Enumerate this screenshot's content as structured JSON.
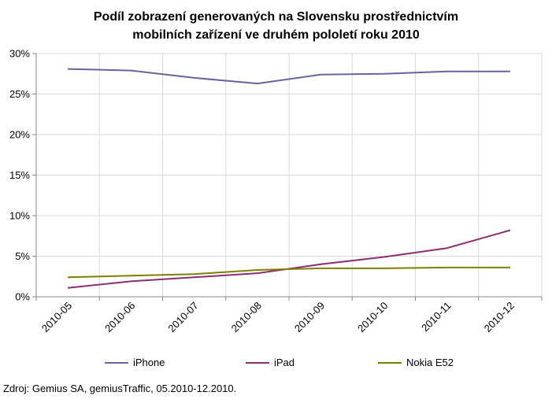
{
  "chart_data": {
    "type": "line",
    "title_line1": "Podíl zobrazení generovaných na Slovensku prostřednictvím",
    "title_line2": "mobilních zařízení  ve druhém pololetí roku 2010",
    "xlabel": "",
    "ylabel": "",
    "categories": [
      "2010-05",
      "2010-06",
      "2010-07",
      "2010-08",
      "2010-09",
      "2010-10",
      "2010-11",
      "2010-12"
    ],
    "yticks": [
      "0%",
      "5%",
      "10%",
      "15%",
      "20%",
      "25%",
      "30%"
    ],
    "ylim": [
      0,
      30
    ],
    "grid": true,
    "legend_position": "bottom",
    "series": [
      {
        "name": "iPhone",
        "color": "#6464a0",
        "values": [
          28.1,
          27.9,
          27.0,
          26.3,
          27.4,
          27.5,
          27.8,
          27.8
        ]
      },
      {
        "name": "iPad",
        "color": "#8b2d6e",
        "values": [
          1.1,
          1.9,
          2.4,
          2.9,
          4.0,
          4.9,
          6.0,
          8.2
        ]
      },
      {
        "name": "Nokia E52",
        "color": "#7f7f00",
        "values": [
          2.4,
          2.6,
          2.8,
          3.3,
          3.5,
          3.5,
          3.6,
          3.6
        ]
      }
    ]
  },
  "source": "Zdroj: Gemius SA, gemiusTraffic, 05.2010-12.2010."
}
